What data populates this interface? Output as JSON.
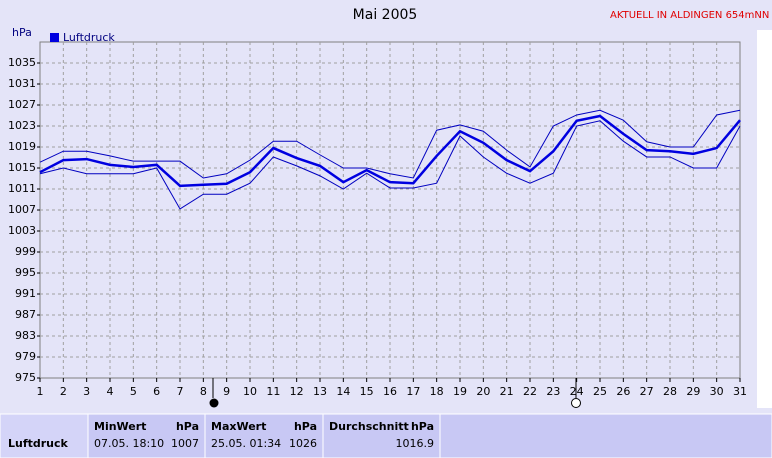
{
  "header": {
    "notice": "AKTUELL IN ALDINGEN 654mNN",
    "unit": "hPa"
  },
  "chart_data": {
    "type": "line",
    "title": "Mai 2005",
    "x": [
      1,
      2,
      3,
      4,
      5,
      6,
      7,
      8,
      9,
      10,
      11,
      12,
      13,
      14,
      15,
      16,
      17,
      18,
      19,
      20,
      21,
      22,
      23,
      24,
      25,
      26,
      27,
      28,
      29,
      30,
      31
    ],
    "series": [
      {
        "name": "Luftdruck",
        "color": "#0000e0",
        "values": [
          1014.2,
          1016.5,
          1016.7,
          1015.6,
          1015.2,
          1015.6,
          1011.6,
          1011.8,
          1012,
          1014.2,
          1018.8,
          1016.9,
          1015.4,
          1012.3,
          1014.6,
          1012.3,
          1012.1,
          1017.3,
          1022,
          1019.8,
          1016.5,
          1014.4,
          1018.2,
          1024,
          1024.9,
          1021.5,
          1018.4,
          1018.2,
          1017.7,
          1018.8,
          1024.1
        ]
      },
      {
        "color": "#0000c0",
        "values": [
          1016.1,
          1018.2,
          1018.2,
          1017.3,
          1016.3,
          1016.3,
          1016.3,
          1013.1,
          1013.9,
          1016.5,
          1020.1,
          1020.1,
          1017.5,
          1015,
          1015,
          1013.9,
          1013.1,
          1022.2,
          1023.2,
          1022,
          1018.4,
          1015.2,
          1023,
          1025.1,
          1026,
          1024.1,
          1020,
          1019,
          1019,
          1025.1,
          1026
        ]
      },
      {
        "color": "#0000c0",
        "values": [
          1013.9,
          1015,
          1013.9,
          1013.9,
          1013.9,
          1015,
          1007.2,
          1010,
          1010,
          1012.1,
          1017.1,
          1015.4,
          1013.5,
          1011,
          1014,
          1011.2,
          1011.2,
          1012.1,
          1021.1,
          1017.1,
          1014,
          1012.1,
          1014,
          1023,
          1024,
          1020.1,
          1017.1,
          1017.1,
          1015,
          1015,
          1023
        ]
      }
    ],
    "xlim": [
      1,
      31
    ],
    "xticks": [
      1,
      2,
      3,
      4,
      5,
      6,
      7,
      8,
      9,
      10,
      11,
      12,
      13,
      14,
      15,
      16,
      17,
      18,
      19,
      20,
      21,
      22,
      23,
      24,
      25,
      26,
      27,
      28,
      29,
      30,
      31
    ],
    "ylim": [
      975,
      1039
    ],
    "yticks": [
      975,
      979,
      983,
      987,
      991,
      995,
      999,
      1003,
      1007,
      1011,
      1015,
      1019,
      1023,
      1027,
      1031,
      1035
    ],
    "grid": true
  },
  "stats": {
    "row_label": "Luftdruck",
    "min": {
      "label": "MinWert",
      "unit": "hPa",
      "time": "07.05. 18:10",
      "value": 1007
    },
    "max": {
      "label": "MaxWert",
      "unit": "hPa",
      "time": "25.05. 01:34",
      "value": 1026
    },
    "avg": {
      "label": "Durchschnitt",
      "unit": "hPa",
      "value": 1016.9
    }
  }
}
